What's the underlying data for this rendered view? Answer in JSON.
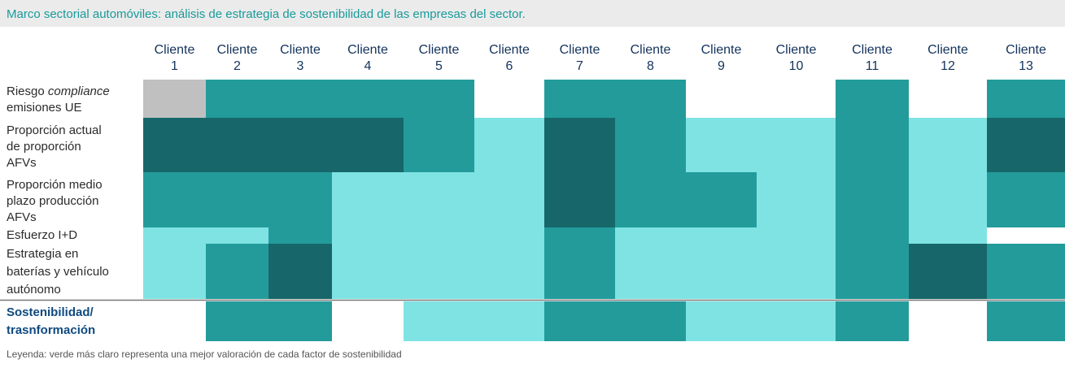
{
  "title": "Marco sectorial automóviles: análisis de estrategia de sostenibilidad de las empresas del sector.",
  "columns": [
    [
      "Cliente",
      "1"
    ],
    [
      "Cliente",
      "2"
    ],
    [
      "Cliente",
      "3"
    ],
    [
      "Cliente",
      "4"
    ],
    [
      "Cliente",
      "5"
    ],
    [
      "Cliente",
      "6"
    ],
    [
      "Cliente",
      "7"
    ],
    [
      "Cliente",
      "8"
    ],
    [
      "Cliente",
      "9"
    ],
    [
      "Cliente",
      "10"
    ],
    [
      "Cliente",
      "11"
    ],
    [
      "Cliente",
      "12"
    ],
    [
      "Cliente",
      "13"
    ]
  ],
  "rows": [
    {
      "label": [
        "Riesgo",
        "compliance",
        "emisiones UE"
      ],
      "colors": [
        "#c0c0c0",
        "#239b9b",
        "#239b9b",
        "#239b9b",
        "#239b9b",
        "#ffffff",
        "#239b9b",
        "#239b9b",
        "#ffffff",
        "#ffffff",
        "#239b9b",
        "#ffffff",
        "#239b9b"
      ]
    },
    {
      "label": [
        "Proporción actual",
        "de proporción",
        "AFVs"
      ],
      "colors": [
        "#17676a",
        "#17676a",
        "#17676a",
        "#17676a",
        "#239b9b",
        "#7fe3e3",
        "#17676a",
        "#239b9b",
        "#7fe3e3",
        "#7fe3e3",
        "#239b9b",
        "#7fe3e3",
        "#17676a"
      ]
    },
    {
      "label": [
        "Proporción medio",
        "plazo producción",
        "AFVs"
      ],
      "colors": [
        "#239b9b",
        "#239b9b",
        "#239b9b",
        "#7fe3e3",
        "#7fe3e3",
        "#7fe3e3",
        "#17676a",
        "#239b9b",
        "#239b9b",
        "#7fe3e3",
        "#239b9b",
        "#7fe3e3",
        "#239b9b"
      ]
    },
    {
      "label": [
        "Esfuerzo I+D"
      ],
      "colors": [
        "#7fe3e3",
        "#7fe3e3",
        "#239b9b",
        "#7fe3e3",
        "#7fe3e3",
        "#7fe3e3",
        "#239b9b",
        "#7fe3e3",
        "#7fe3e3",
        "#7fe3e3",
        "#239b9b",
        "#7fe3e3",
        "#ffffff"
      ]
    },
    {
      "label": [
        "Estrategia en",
        "baterías y vehículo",
        "autónomo"
      ],
      "colors": [
        "#7fe3e3",
        "#239b9b",
        "#17676a",
        "#7fe3e3",
        "#7fe3e3",
        "#7fe3e3",
        "#239b9b",
        "#7fe3e3",
        "#7fe3e3",
        "#7fe3e3",
        "#239b9b",
        "#17676a",
        "#239b9b"
      ]
    }
  ],
  "summary": {
    "label": [
      "Sostenibilidad/",
      "trasnformación"
    ],
    "colors": [
      "#ffffff",
      "#239b9b",
      "#239b9b",
      "#ffffff",
      "#7fe3e3",
      "#7fe3e3",
      "#239b9b",
      "#239b9b",
      "#7fe3e3",
      "#7fe3e3",
      "#239b9b",
      "#ffffff",
      "#239b9b"
    ]
  },
  "legend": "Leyenda: verde más claro representa una mejor valoración de cada factor de sostenibilidad"
}
